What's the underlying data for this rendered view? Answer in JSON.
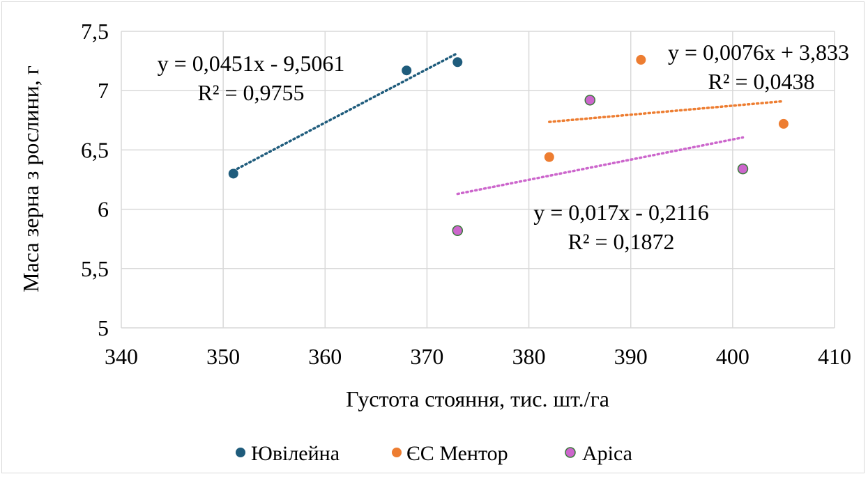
{
  "chart_data": {
    "type": "scatter",
    "xlabel": "Густота стояння, тис. шт./га",
    "ylabel": "Маса зерна з рослини, г",
    "xlim": [
      340,
      410
    ],
    "ylim": [
      5,
      7.5
    ],
    "xticks": [
      340,
      350,
      360,
      370,
      380,
      390,
      400,
      410
    ],
    "xtick_labels": [
      "340",
      "350",
      "360",
      "370",
      "380",
      "390",
      "400",
      "410"
    ],
    "yticks": [
      5,
      5.5,
      6,
      6.5,
      7,
      7.5
    ],
    "ytick_labels": [
      "5",
      "5,5",
      "6",
      "6,5",
      "7",
      "7,5"
    ],
    "grid": true,
    "legend_position": "bottom",
    "series": [
      {
        "name": "Ювілейна",
        "color": "#1f5c7c",
        "points": [
          {
            "x": 351,
            "y": 6.3
          },
          {
            "x": 368,
            "y": 7.17
          },
          {
            "x": 373,
            "y": 7.24
          }
        ],
        "trendline": {
          "type": "linear",
          "slope": 0.0451,
          "intercept": -9.5061,
          "x_range": [
            351,
            373
          ],
          "equation": "y = 0,0451x - 9,5061",
          "r2": "R² = 0,9755"
        }
      },
      {
        "name": "ЄС Ментор",
        "color": "#ed7d31",
        "points": [
          {
            "x": 382,
            "y": 6.44
          },
          {
            "x": 391,
            "y": 7.26
          },
          {
            "x": 405,
            "y": 6.72
          }
        ],
        "trendline": {
          "type": "linear",
          "slope": 0.0076,
          "intercept": 3.833,
          "x_range": [
            382,
            405
          ],
          "equation": "y = 0,0076x + 3,833",
          "r2": "R² = 0,0438"
        }
      },
      {
        "name": "Аріса",
        "color": "#cc66cc",
        "edge_color": "#3a7a3a",
        "points": [
          {
            "x": 373,
            "y": 5.82
          },
          {
            "x": 386,
            "y": 6.92
          },
          {
            "x": 401,
            "y": 6.34
          }
        ],
        "trendline": {
          "type": "linear",
          "slope": 0.017,
          "intercept": -0.2116,
          "x_range": [
            373,
            401
          ],
          "equation": "y = 0,017x - 0,2116",
          "r2": "R² = 0,1872"
        }
      }
    ]
  }
}
